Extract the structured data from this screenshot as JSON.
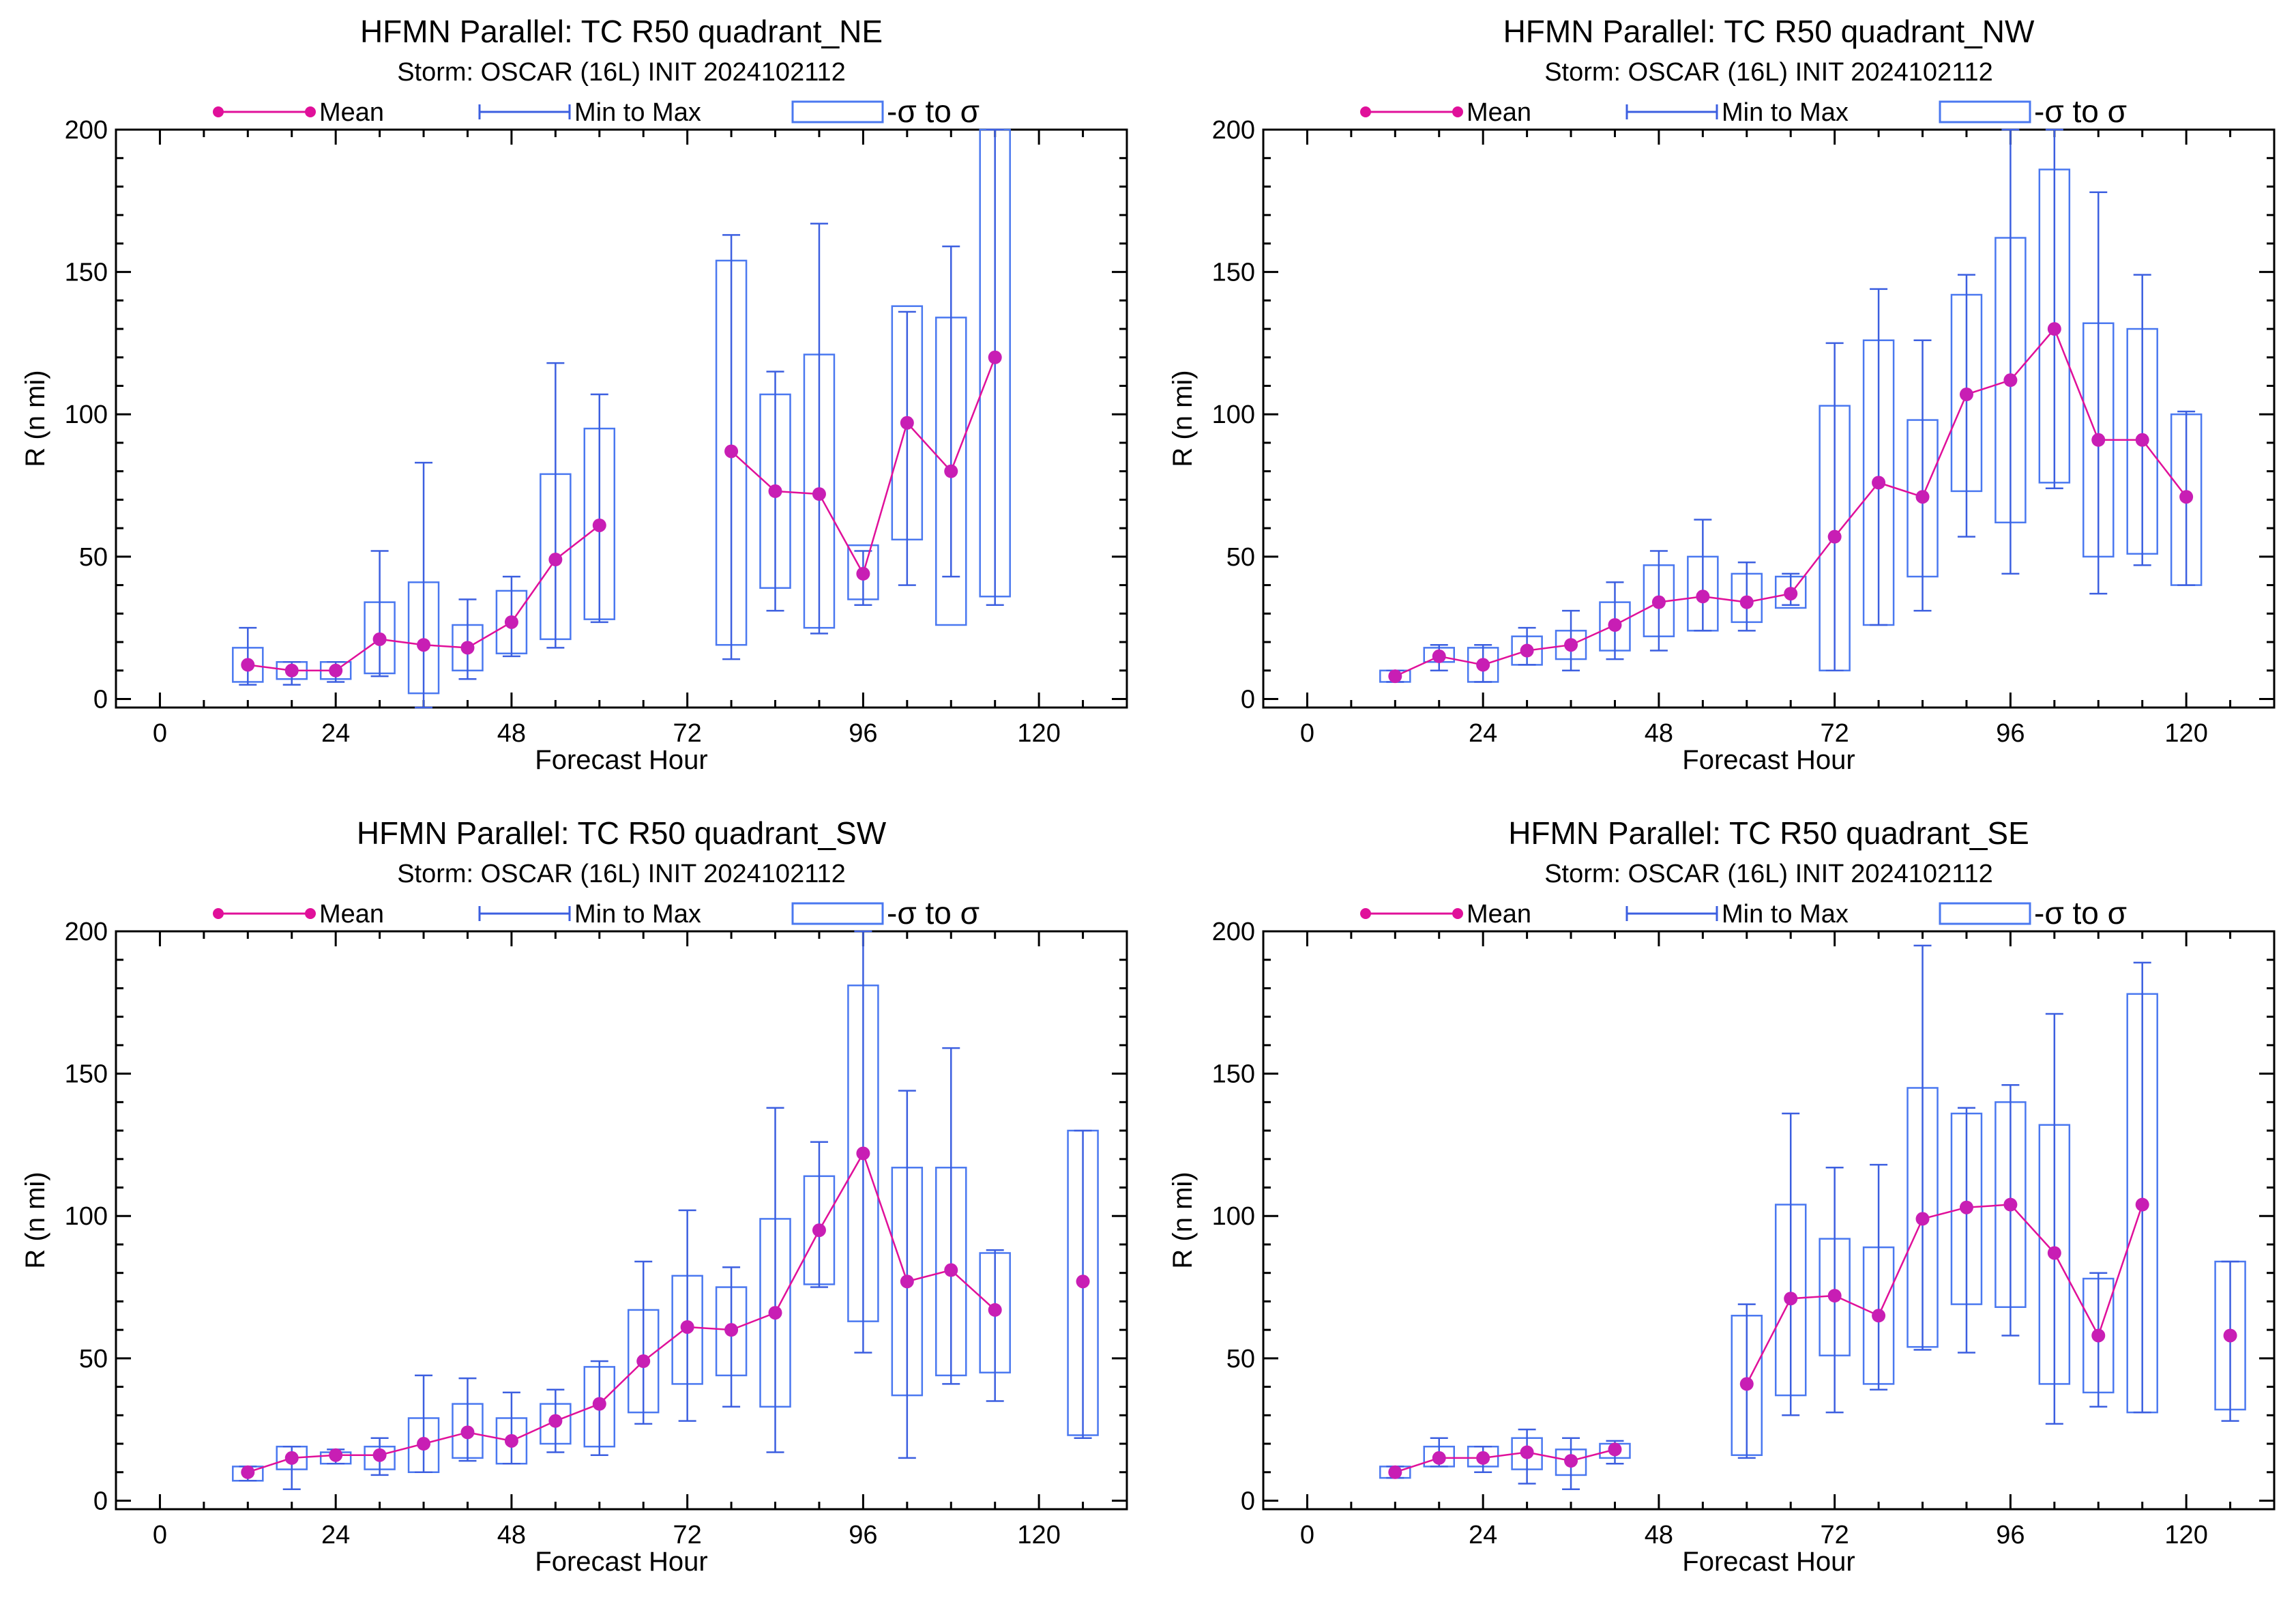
{
  "colors": {
    "mean": "#e0109a",
    "mean_marker": "#c81eb4",
    "range": "#3c5fe0",
    "sigma": "#4a78f0"
  },
  "chart_data": [
    {
      "type": "box",
      "title": "HFMN Parallel: TC  R50 quadrant_NE",
      "subtitle": "Storm: OSCAR (16L) INIT 2024102112",
      "legend": {
        "mean": "Mean",
        "range": "Min to Max",
        "sigma": "-σ to σ"
      },
      "xlabel": "Forecast Hour",
      "ylabel": "R (n mi)",
      "xlim": [
        -6,
        132
      ],
      "ylim": [
        -3,
        200
      ],
      "xticks": [
        0,
        24,
        48,
        72,
        96,
        120
      ],
      "yticks": [
        0,
        50,
        100,
        150,
        200
      ],
      "x": [
        12,
        18,
        24,
        30,
        36,
        42,
        48,
        54,
        60,
        78,
        84,
        90,
        96,
        102,
        108,
        114
      ],
      "mean": [
        12,
        10,
        10,
        21,
        19,
        18,
        27,
        49,
        61,
        87,
        73,
        72,
        44,
        97,
        80,
        120
      ],
      "min": [
        5,
        5,
        6,
        8,
        -4,
        7,
        15,
        18,
        27,
        14,
        31,
        23,
        33,
        40,
        43,
        33
      ],
      "max": [
        25,
        13,
        13,
        52,
        83,
        35,
        43,
        118,
        107,
        163,
        115,
        167,
        52,
        136,
        159,
        203
      ],
      "sigma_low": [
        6,
        7,
        7,
        9,
        2,
        10,
        16,
        21,
        28,
        19,
        39,
        25,
        35,
        56,
        26,
        36
      ],
      "sigma_high": [
        18,
        13,
        13,
        34,
        41,
        26,
        38,
        79,
        95,
        154,
        107,
        121,
        54,
        138,
        134,
        203
      ]
    },
    {
      "type": "box",
      "title": "HFMN Parallel: TC  R50 quadrant_NW",
      "subtitle": "Storm: OSCAR (16L) INIT 2024102112",
      "legend": {
        "mean": "Mean",
        "range": "Min to Max",
        "sigma": "-σ to σ"
      },
      "xlabel": "Forecast Hour",
      "ylabel": "R (n mi)",
      "xlim": [
        -6,
        132
      ],
      "ylim": [
        -3,
        200
      ],
      "xticks": [
        0,
        24,
        48,
        72,
        96,
        120
      ],
      "yticks": [
        0,
        50,
        100,
        150,
        200
      ],
      "x": [
        12,
        18,
        24,
        30,
        36,
        42,
        48,
        54,
        60,
        66,
        72,
        78,
        84,
        90,
        96,
        102,
        108,
        114,
        120
      ],
      "mean": [
        8,
        15,
        12,
        17,
        19,
        26,
        34,
        36,
        34,
        37,
        57,
        76,
        71,
        107,
        112,
        130,
        91,
        91,
        71
      ],
      "min": [
        6,
        10,
        6,
        12,
        10,
        14,
        17,
        24,
        24,
        33,
        10,
        26,
        31,
        57,
        44,
        74,
        37,
        47,
        40
      ],
      "max": [
        10,
        19,
        19,
        25,
        31,
        41,
        52,
        63,
        48,
        44,
        125,
        144,
        126,
        149,
        200,
        200,
        178,
        149,
        101
      ],
      "sigma_low": [
        6,
        13,
        6,
        12,
        14,
        17,
        22,
        24,
        27,
        32,
        10,
        26,
        43,
        73,
        62,
        76,
        50,
        51,
        40
      ],
      "sigma_high": [
        10,
        18,
        18,
        22,
        24,
        34,
        47,
        50,
        44,
        43,
        103,
        126,
        98,
        142,
        162,
        186,
        132,
        130,
        100
      ]
    },
    {
      "type": "box",
      "title": "HFMN Parallel: TC  R50 quadrant_SW",
      "subtitle": "Storm: OSCAR (16L) INIT 2024102112",
      "legend": {
        "mean": "Mean",
        "range": "Min to Max",
        "sigma": "-σ to σ"
      },
      "xlabel": "Forecast Hour",
      "ylabel": "R (n mi)",
      "xlim": [
        -6,
        132
      ],
      "ylim": [
        -3,
        200
      ],
      "xticks": [
        0,
        24,
        48,
        72,
        96,
        120
      ],
      "yticks": [
        0,
        50,
        100,
        150,
        200
      ],
      "x": [
        12,
        18,
        24,
        30,
        36,
        42,
        48,
        54,
        60,
        66,
        72,
        78,
        84,
        90,
        96,
        102,
        108,
        114,
        126
      ],
      "mean": [
        10,
        15,
        16,
        16,
        20,
        24,
        21,
        28,
        34,
        49,
        61,
        60,
        66,
        95,
        122,
        77,
        81,
        67,
        77
      ],
      "min": [
        7,
        4,
        13,
        9,
        10,
        14,
        13,
        17,
        16,
        27,
        28,
        33,
        17,
        75,
        52,
        15,
        41,
        35,
        22
      ],
      "max": [
        12,
        19,
        18,
        22,
        44,
        43,
        38,
        39,
        49,
        84,
        102,
        82,
        138,
        126,
        200,
        144,
        159,
        88,
        130
      ],
      "sigma_low": [
        7,
        11,
        13,
        11,
        10,
        15,
        13,
        20,
        19,
        31,
        41,
        44,
        33,
        76,
        63,
        37,
        44,
        45,
        23
      ],
      "sigma_high": [
        12,
        19,
        17,
        19,
        29,
        34,
        29,
        34,
        47,
        67,
        79,
        75,
        99,
        114,
        181,
        117,
        117,
        87,
        130
      ]
    },
    {
      "type": "box",
      "title": "HFMN Parallel: TC  R50 quadrant_SE",
      "subtitle": "Storm: OSCAR (16L) INIT 2024102112",
      "legend": {
        "mean": "Mean",
        "range": "Min to Max",
        "sigma": "-σ to σ"
      },
      "xlabel": "Forecast Hour",
      "ylabel": "R (n mi)",
      "xlim": [
        -6,
        132
      ],
      "ylim": [
        -3,
        200
      ],
      "xticks": [
        0,
        24,
        48,
        72,
        96,
        120
      ],
      "yticks": [
        0,
        50,
        100,
        150,
        200
      ],
      "x": [
        12,
        18,
        24,
        30,
        36,
        42,
        60,
        66,
        72,
        78,
        84,
        90,
        96,
        102,
        108,
        114,
        126
      ],
      "mean": [
        10,
        15,
        15,
        17,
        14,
        18,
        41,
        71,
        72,
        65,
        99,
        103,
        104,
        87,
        58,
        104,
        58
      ],
      "min": [
        8,
        12,
        10,
        6,
        4,
        13,
        15,
        30,
        31,
        39,
        53,
        52,
        58,
        27,
        33,
        31,
        28
      ],
      "max": [
        12,
        22,
        19,
        25,
        22,
        21,
        69,
        136,
        117,
        118,
        195,
        138,
        146,
        171,
        80,
        189,
        84
      ],
      "sigma_low": [
        8,
        12,
        12,
        11,
        9,
        15,
        16,
        37,
        51,
        41,
        54,
        69,
        68,
        41,
        38,
        31,
        32
      ],
      "sigma_high": [
        12,
        19,
        19,
        22,
        18,
        20,
        65,
        104,
        92,
        89,
        145,
        136,
        140,
        132,
        78,
        178,
        84
      ]
    }
  ]
}
